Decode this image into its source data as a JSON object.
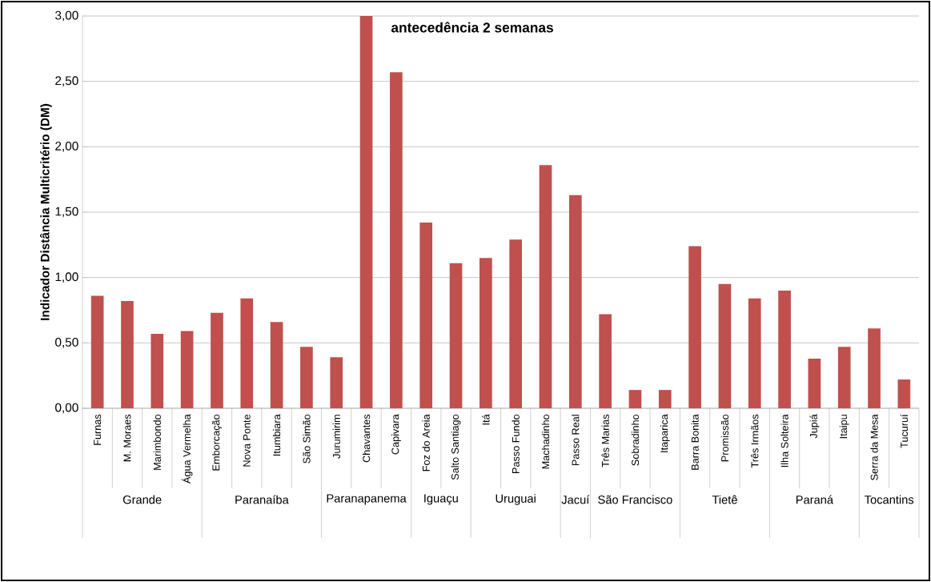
{
  "chart_data": {
    "type": "bar",
    "ylabel": "Indicador Distância Multicritério (DM)",
    "categories": [
      "Furnas",
      "M. Moraes",
      "Marimbondo",
      "Água Vermelha",
      "Emborcação",
      "Nova Ponte",
      "Itumbiara",
      "São Simão",
      "Jurumirim",
      "Chavantes",
      "Capivara",
      "Foz do Areia",
      "Salto Santiago",
      "Itá",
      "Passo Fundo",
      "Machadinho",
      "Passo Real",
      "Três Marias",
      "Sobradinho",
      "Itaparica",
      "Barra Bonita",
      "Promissão",
      "Três Irmãos",
      "Ilha Solteira",
      "Jupiá",
      "Itaipu",
      "Serra da Mesa",
      "Tucuruí"
    ],
    "values": [
      0.86,
      0.82,
      0.57,
      0.59,
      0.73,
      0.84,
      0.66,
      0.47,
      0.39,
      3.0,
      2.57,
      1.42,
      1.11,
      1.15,
      1.29,
      1.86,
      1.63,
      0.72,
      0.14,
      0.14,
      1.24,
      0.95,
      0.84,
      0.9,
      0.38,
      0.47,
      0.61,
      0.22
    ],
    "color": "#c0504d",
    "ylim": [
      0,
      3
    ],
    "yticks": [
      {
        "value": 0,
        "label": "0,00"
      },
      {
        "value": 0.5,
        "label": "0,50"
      },
      {
        "value": 1,
        "label": "1,00"
      },
      {
        "value": 1.5,
        "label": "1,50"
      },
      {
        "value": 2,
        "label": "2,00"
      },
      {
        "value": 2.5,
        "label": "2,50"
      },
      {
        "value": 3,
        "label": "3,00"
      }
    ],
    "grid": "y",
    "annotations": [
      "antecedência 2 semanas",
      "Grande",
      "Paranaíba",
      "Paranapanema",
      "Iguaçu",
      "Uruguai",
      "Jacuí",
      "São Francisco",
      "Tietê",
      "Paraná",
      "Tocantins"
    ]
  }
}
